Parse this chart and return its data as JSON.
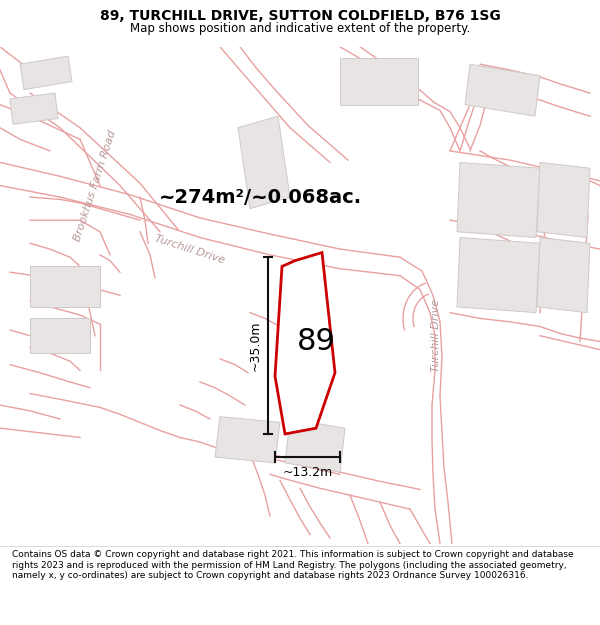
{
  "title": "89, TURCHILL DRIVE, SUTTON COLDFIELD, B76 1SG",
  "subtitle": "Map shows position and indicative extent of the property.",
  "area_text": "~274m²/~0.068ac.",
  "label_35m": "~35.0m",
  "label_13m": "~13.2m",
  "property_number": "89",
  "map_bg": "#f8f5f5",
  "road_line_color": "#e8a0a0",
  "building_color": "#e8e4e4",
  "building_edge": "#d0c8c8",
  "property_outline": "#cc0000",
  "property_fill": "#ffffff",
  "dim_line_color": "#111111",
  "road_label_color": "#b89898",
  "footer_text": "Contains OS data © Crown copyright and database right 2021. This information is subject to Crown copyright and database rights 2023 and is reproduced with the permission of HM Land Registry. The polygons (including the associated geometry, namely x, y co-ordinates) are subject to Crown copyright and database rights 2023 Ordnance Survey 100026316.",
  "title_fontsize": 10,
  "subtitle_fontsize": 8.5,
  "footer_fontsize": 6.5,
  "area_fontsize": 14,
  "number_fontsize": 22,
  "road_label_fontsize": 8,
  "dim_fontsize": 9
}
